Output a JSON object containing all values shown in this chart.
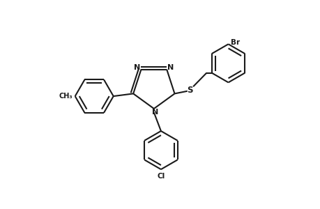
{
  "background_color": "#ffffff",
  "line_color": "#1a1a1a",
  "line_width": 1.5,
  "figsize": [
    4.6,
    3.0
  ],
  "dpi": 100,
  "xlim": [
    0,
    10
  ],
  "ylim": [
    0,
    6.5
  ]
}
